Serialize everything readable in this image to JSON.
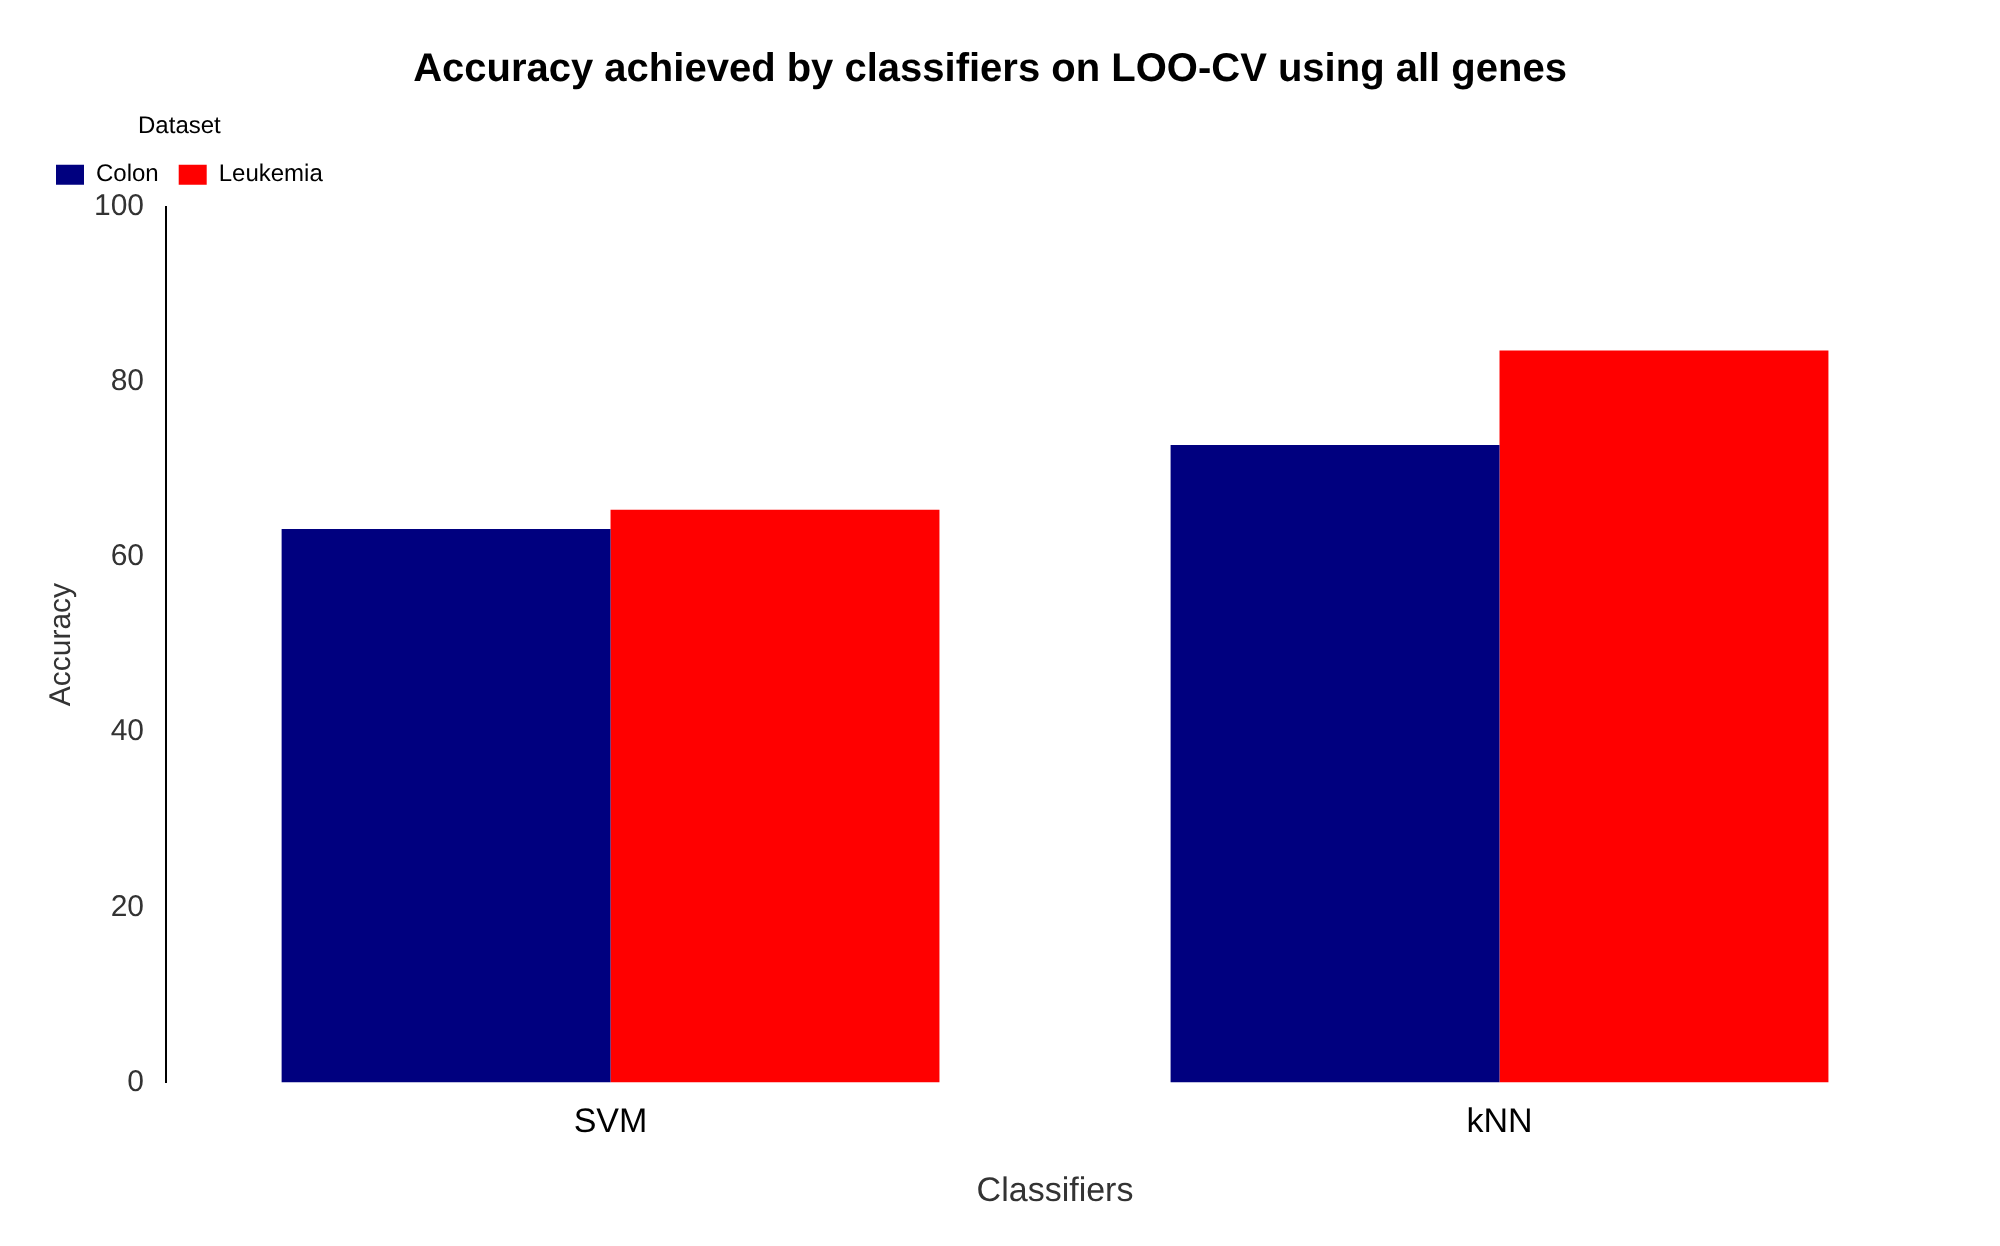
{
  "chart_data": {
    "type": "bar",
    "title": "Accuracy achieved by classifiers on LOO-CV using all genes",
    "xlabel": "Classifiers",
    "ylabel": "Accuracy",
    "legend_title": "Dataset",
    "categories": [
      "SVM",
      "kNN"
    ],
    "series": [
      {
        "name": "Colon",
        "color": "#00007f",
        "values": [
          63.2,
          72.8
        ]
      },
      {
        "name": "Leukemia",
        "color": "#ff0000",
        "values": [
          65.4,
          83.6
        ]
      }
    ],
    "ylim": [
      0,
      100
    ],
    "yticks": [
      0,
      20,
      40,
      60,
      80,
      100
    ],
    "grid": false,
    "legend": "top left"
  }
}
